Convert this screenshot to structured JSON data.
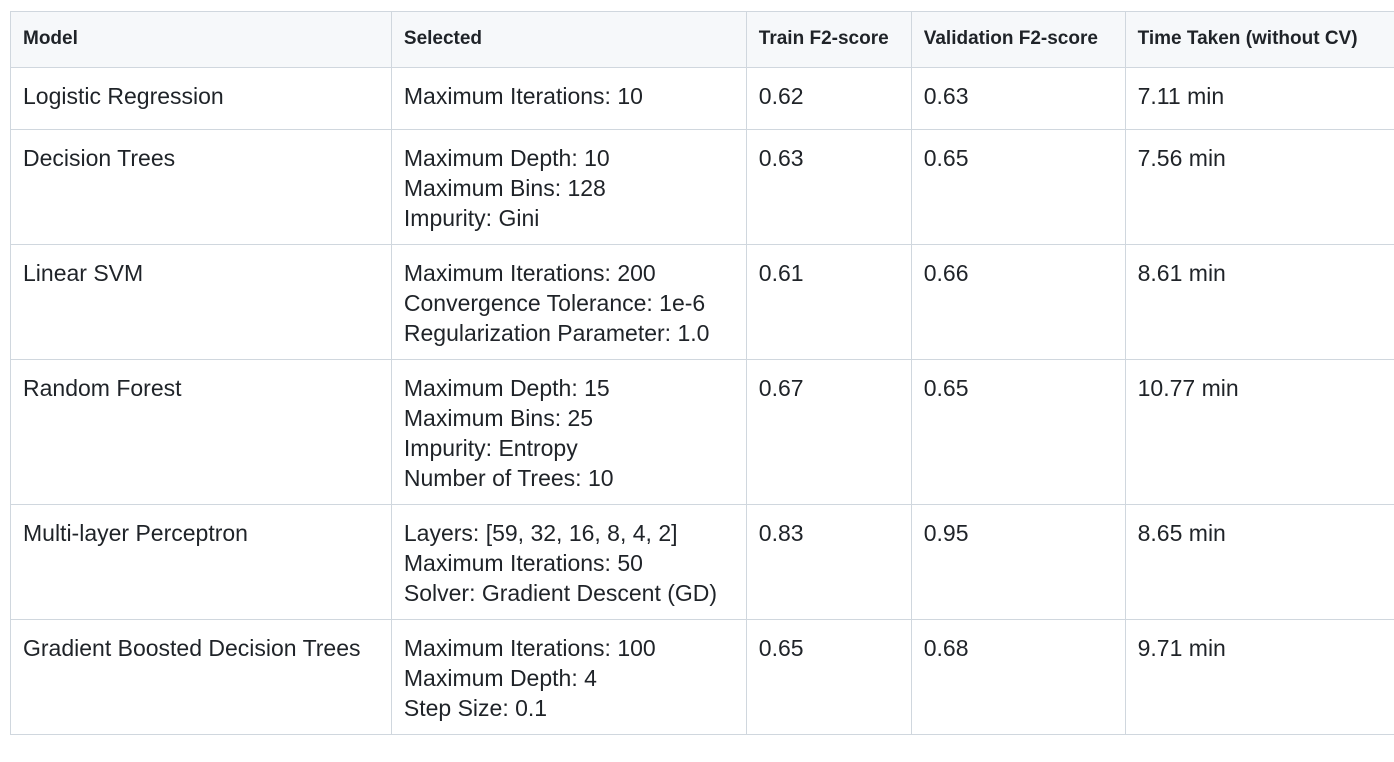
{
  "table": {
    "headers": {
      "model": "Model",
      "selected": "Selected",
      "train": "Train F2-score",
      "validation": "Validation F2-score",
      "time": "Time Taken (without CV)"
    },
    "rows": [
      {
        "model": "Logistic Regression",
        "selected": [
          "Maximum Iterations: 10",
          "",
          "",
          ""
        ],
        "train": "0.62",
        "validation": "0.63",
        "time": "7.11 min"
      },
      {
        "model": "Decision Trees",
        "selected": [
          "Maximum Depth: 10",
          "Maximum Bins: 128",
          "Impurity: Gini",
          ""
        ],
        "train": "0.63",
        "validation": "0.65",
        "time": "7.56 min"
      },
      {
        "model": "Linear SVM",
        "selected": [
          "Maximum Iterations: 200",
          "Convergence Tolerance: 1e-6",
          "Regularization Parameter: 1.0",
          ""
        ],
        "train": "0.61",
        "validation": "0.66",
        "time": "8.61 min"
      },
      {
        "model": "Random Forest",
        "selected": [
          "Maximum Depth: 15",
          "Maximum Bins: 25",
          "Impurity: Entropy",
          "Number of Trees: 10"
        ],
        "train": "0.67",
        "validation": "0.65",
        "time": "10.77 min"
      },
      {
        "model": "Multi-layer Perceptron",
        "selected": [
          "Layers: [59, 32, 16, 8, 4, 2]",
          "Maximum Iterations: 50",
          "Solver: Gradient Descent (GD)",
          ""
        ],
        "train": "0.83",
        "validation": "0.95",
        "time": "8.65 min"
      },
      {
        "model": "Gradient Boosted Decision Trees",
        "selected": [
          "Maximum Iterations: 100",
          "Maximum Depth: 4",
          "Step Size: 0.1",
          ""
        ],
        "train": "0.65",
        "validation": "0.68",
        "time": "9.71 min"
      }
    ]
  }
}
